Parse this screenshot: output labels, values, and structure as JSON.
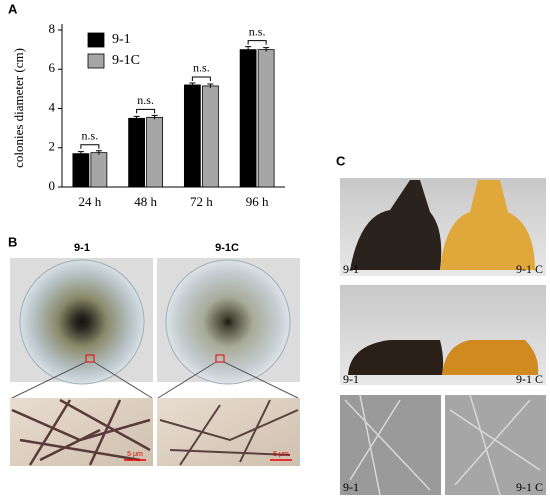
{
  "chart_data": {
    "type": "bar",
    "panel_label": "A",
    "y_label": "colonies diameter (cm)",
    "categories": [
      "24 h",
      "48 h",
      "72 h",
      "96 h"
    ],
    "series": [
      {
        "name": "9-1",
        "color": "#000000",
        "values": [
          1.7,
          3.5,
          5.2,
          7.0
        ],
        "errors": [
          0.1,
          0.1,
          0.1,
          0.15
        ]
      },
      {
        "name": "9-1C",
        "color": "#a6a6a6",
        "values": [
          1.75,
          3.55,
          5.15,
          7.0
        ],
        "errors": [
          0.1,
          0.1,
          0.1,
          0.1
        ]
      }
    ],
    "annotations": [
      "n.s.",
      "n.s.",
      "n.s.",
      "n.s."
    ],
    "ylim": [
      0,
      8
    ],
    "yticks": [
      0,
      2,
      4,
      6,
      8
    ],
    "legend": "upper left"
  },
  "panel_b": {
    "label": "B",
    "strains": [
      "9-1",
      "9-1C"
    ],
    "scale_bars": [
      "5 μm",
      "5 μm"
    ]
  },
  "panel_c": {
    "label": "C",
    "rows": [
      {
        "left": "9-1",
        "right": "9-1 C"
      },
      {
        "left": "9-1",
        "right": "9-1 C"
      },
      {
        "left": "9-1",
        "right": "9-1 C"
      }
    ]
  }
}
